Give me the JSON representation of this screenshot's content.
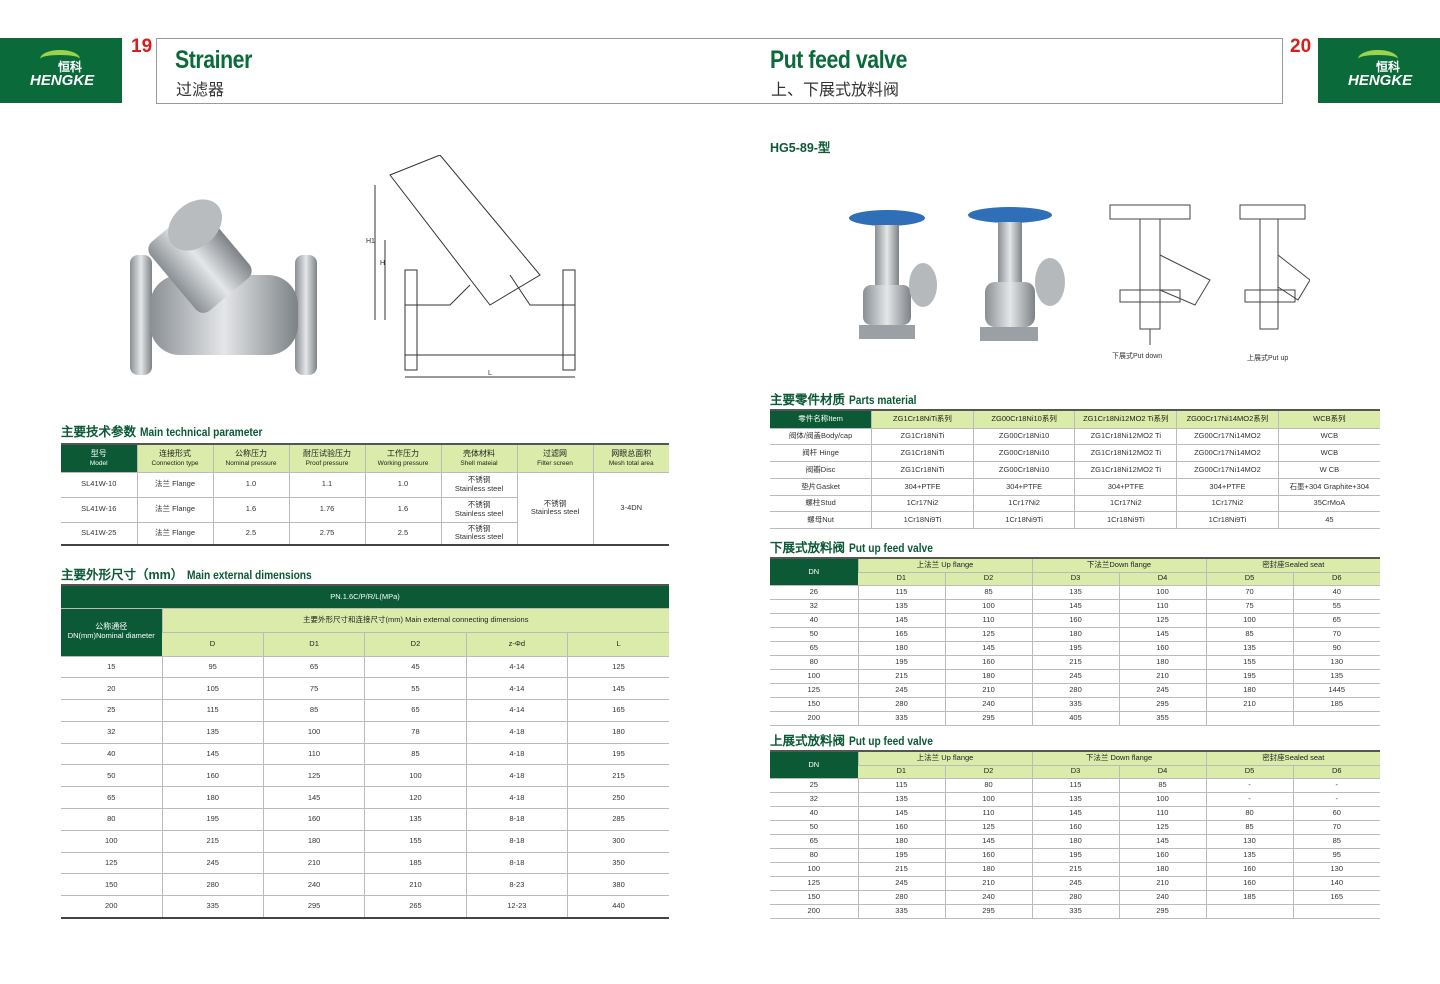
{
  "brand": {
    "name": "HENGKE",
    "name_cn": "恒科",
    "registered": "®"
  },
  "left_page": {
    "page_number": "19",
    "title": "Strainer",
    "title_cn": "过滤器"
  },
  "right_page": {
    "page_number": "20",
    "title": "Put feed valve",
    "title_cn": "上、下展式放料阀",
    "model": "HG5-89-型"
  },
  "drawing_labels": {
    "H1": "H1",
    "H": "H",
    "L": "L",
    "put_down": "下展式Put down",
    "put_up": "上展式Put up"
  },
  "tech": {
    "title_cn": "主要技术参数",
    "title_en": "Main technical parameter",
    "headers": [
      [
        "型号",
        "Model"
      ],
      [
        "连接形式",
        "Connection type"
      ],
      [
        "公称压力",
        "Nominal pressure"
      ],
      [
        "耐压试验压力",
        "Proof pressure"
      ],
      [
        "工作压力",
        "Working pressure"
      ],
      [
        "壳体材料",
        "Shell mateial"
      ],
      [
        "过滤网",
        "Filter screen"
      ],
      [
        "网眼总面积",
        "Mesh total area"
      ]
    ],
    "rows": [
      {
        "model": "SL41W-10",
        "conn": "法兰 Flange",
        "nominal": "1.0",
        "proof": "1.1",
        "working": "1.0",
        "shell_cn": "不锈钢",
        "shell_en": "Stainless steel"
      },
      {
        "model": "SL41W-16",
        "conn": "法兰 Flange",
        "nominal": "1.6",
        "proof": "1.76",
        "working": "1.6",
        "shell_cn": "不锈钢",
        "shell_en": "Stainless steel"
      },
      {
        "model": "SL41W-25",
        "conn": "法兰 Flange",
        "nominal": "2.5",
        "proof": "2.75",
        "working": "2.5",
        "shell_cn": "不锈钢",
        "shell_en": "Stainless steel"
      }
    ],
    "filter_cn": "不锈钢",
    "filter_en": "Stainless steel",
    "mesh_area": "3-4DN"
  },
  "dims": {
    "title_cn": "主要外形尺寸（mm）",
    "title_en": "Main external dimensions",
    "pressure": "PN.1.6C/P/R/L(MPa)",
    "dn_cn": "公称通径",
    "dn_en": "DN(mm)Nominal diameter",
    "group": "主要外形尺寸和连接尺寸(mm) Main external connecting dimensions",
    "columns": [
      "D",
      "D1",
      "D2",
      "z-Φd",
      "L"
    ],
    "rows": [
      [
        "15",
        "95",
        "65",
        "45",
        "4-14",
        "125"
      ],
      [
        "20",
        "105",
        "75",
        "55",
        "4-14",
        "145"
      ],
      [
        "25",
        "115",
        "85",
        "65",
        "4-14",
        "165"
      ],
      [
        "32",
        "135",
        "100",
        "78",
        "4-18",
        "180"
      ],
      [
        "40",
        "145",
        "110",
        "85",
        "4-18",
        "195"
      ],
      [
        "50",
        "160",
        "125",
        "100",
        "4-18",
        "215"
      ],
      [
        "65",
        "180",
        "145",
        "120",
        "4-18",
        "250"
      ],
      [
        "80",
        "195",
        "160",
        "135",
        "8-18",
        "285"
      ],
      [
        "100",
        "215",
        "180",
        "155",
        "8-18",
        "300"
      ],
      [
        "125",
        "245",
        "210",
        "185",
        "8-18",
        "350"
      ],
      [
        "150",
        "280",
        "240",
        "210",
        "8-23",
        "380"
      ],
      [
        "200",
        "335",
        "295",
        "265",
        "12-23",
        "440"
      ]
    ]
  },
  "parts": {
    "title_cn": "主要零件材质",
    "title_en": "Parts material",
    "headers": [
      "零件名称Item",
      "ZG1Cr18NiTi系列",
      "ZG00Cr18Ni10系列",
      "ZG1Cr18Ni12MO2 Ti系列",
      "ZG00Cr17Ni14MO2系列",
      "WCB系列"
    ],
    "rows": [
      [
        "阀体/阀盖Body/cap",
        "ZG1Cr18NiTi",
        "ZG00Cr18Ni10",
        "ZG1Cr18Ni12MO2 Ti",
        "ZG00Cr17Ni14MO2",
        "WCB"
      ],
      [
        "阀杆 Hinge",
        "ZG1Cr18NiTi",
        "ZG00Cr18Ni10",
        "ZG1Cr18Ni12MO2 Ti",
        "ZG00Cr17Ni14MO2",
        "WCB"
      ],
      [
        "阀瓣Disc",
        "ZG1Cr18NiTi",
        "ZG00Cr18Ni10",
        "ZG1Cr18Ni12MO2 Ti",
        "ZG00Cr17Ni14MO2",
        "W CB"
      ],
      [
        "垫片Gasket",
        "304+PTFE",
        "304+PTFE",
        "304+PTFE",
        "304+PTFE",
        "石墨+304 Graphite+304"
      ],
      [
        "螺柱Stud",
        "1Cr17Ni2",
        "1Cr17Ni2",
        "1Cr17Ni2",
        "1Cr17Ni2",
        "35CrMoA"
      ],
      [
        "螺母Nut",
        "1Cr18Ni9Ti",
        "1Cr18Ni9Ti",
        "1Cr18Ni9Ti",
        "1Cr18Ni9Ti",
        "45"
      ]
    ]
  },
  "down": {
    "title_cn": "下展式放料阀",
    "title_en": "Put up feed valve",
    "dn": "DN",
    "groups": [
      "上法兰 Up flange",
      "下法兰Down flange",
      "密封座Sealed seat"
    ],
    "columns": [
      "D1",
      "D2",
      "D3",
      "D4",
      "D5",
      "D6"
    ],
    "rows": [
      [
        "26",
        "115",
        "85",
        "135",
        "100",
        "70",
        "40"
      ],
      [
        "32",
        "135",
        "100",
        "145",
        "110",
        "75",
        "55"
      ],
      [
        "40",
        "145",
        "110",
        "160",
        "125",
        "100",
        "65"
      ],
      [
        "50",
        "165",
        "125",
        "180",
        "145",
        "85",
        "70"
      ],
      [
        "65",
        "180",
        "145",
        "195",
        "160",
        "135",
        "90"
      ],
      [
        "80",
        "195",
        "160",
        "215",
        "180",
        "155",
        "130"
      ],
      [
        "100",
        "215",
        "180",
        "245",
        "210",
        "195",
        "135"
      ],
      [
        "125",
        "245",
        "210",
        "280",
        "245",
        "180",
        "1445"
      ],
      [
        "150",
        "280",
        "240",
        "335",
        "295",
        "210",
        "185"
      ],
      [
        "200",
        "335",
        "295",
        "405",
        "355",
        "",
        ""
      ]
    ]
  },
  "up": {
    "title_cn": "上展式放料阀",
    "title_en": "Put up feed valve",
    "dn": "DN",
    "groups": [
      "上法兰 Up flange",
      "下法兰 Down flange",
      "密封座Sealed seat"
    ],
    "columns": [
      "D1",
      "D2",
      "D3",
      "D4",
      "D5",
      "D6"
    ],
    "rows": [
      [
        "25",
        "115",
        "80",
        "115",
        "85",
        "-",
        "-"
      ],
      [
        "32",
        "135",
        "100",
        "135",
        "100",
        "-",
        "-"
      ],
      [
        "40",
        "145",
        "110",
        "145",
        "110",
        "80",
        "60"
      ],
      [
        "50",
        "160",
        "125",
        "160",
        "125",
        "85",
        "70"
      ],
      [
        "65",
        "180",
        "145",
        "180",
        "145",
        "130",
        "85"
      ],
      [
        "80",
        "195",
        "160",
        "195",
        "160",
        "135",
        "95"
      ],
      [
        "100",
        "215",
        "180",
        "215",
        "180",
        "160",
        "130"
      ],
      [
        "125",
        "245",
        "210",
        "245",
        "210",
        "160",
        "140"
      ],
      [
        "150",
        "280",
        "240",
        "280",
        "240",
        "185",
        "165"
      ],
      [
        "200",
        "335",
        "295",
        "335",
        "295",
        "",
        ""
      ]
    ]
  },
  "colors": {
    "brand_green": "#0b6a3a",
    "header_light_green": "#dbeba9",
    "page_number_red": "#d91c1c"
  }
}
